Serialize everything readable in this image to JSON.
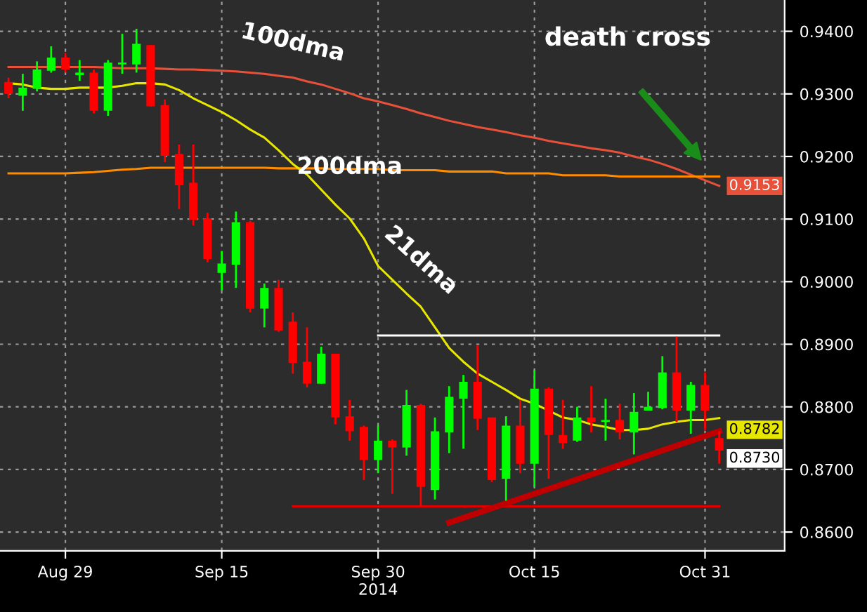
{
  "chart_data": {
    "type": "candlestick",
    "categories": [
      null,
      null,
      null,
      null,
      "Aug 29",
      null,
      null,
      null,
      null,
      null,
      null,
      null,
      null,
      null,
      null,
      "Sep 15",
      null,
      null,
      null,
      null,
      null,
      null,
      null,
      null,
      null,
      null,
      "Sep 30\n2014",
      null,
      null,
      null,
      null,
      null,
      null,
      null,
      null,
      null,
      null,
      "Oct 15",
      null,
      null,
      null,
      null,
      null,
      null,
      null,
      null,
      null,
      null,
      null,
      "Oct 31",
      null
    ],
    "ohlc": [
      [
        0.9319,
        0.9326,
        0.9293,
        0.93
      ],
      [
        0.9297,
        0.9332,
        0.9273,
        0.931
      ],
      [
        0.9308,
        0.9352,
        0.9304,
        0.9339
      ],
      [
        0.9337,
        0.9376,
        0.9334,
        0.9358
      ],
      [
        0.9358,
        0.9365,
        0.9334,
        0.9339
      ],
      [
        0.933,
        0.9354,
        0.9321,
        0.9334
      ],
      [
        0.9334,
        0.9339,
        0.9269,
        0.9273
      ],
      [
        0.9273,
        0.9354,
        0.9265,
        0.935
      ],
      [
        0.9347,
        0.9396,
        0.9332,
        0.935
      ],
      [
        0.9347,
        0.9404,
        0.9334,
        0.938
      ],
      [
        0.9378,
        0.9378,
        0.928,
        0.928
      ],
      [
        0.9282,
        0.9291,
        0.9191,
        0.9201
      ],
      [
        0.9204,
        0.9219,
        0.9116,
        0.9154
      ],
      [
        0.9158,
        0.9219,
        0.909,
        0.9099
      ],
      [
        0.9101,
        0.911,
        0.9031,
        0.9036
      ],
      [
        0.9014,
        0.9049,
        0.8986,
        0.9029
      ],
      [
        0.9027,
        0.9112,
        0.899,
        0.9095
      ],
      [
        0.9095,
        0.9097,
        0.8951,
        0.8957
      ],
      [
        0.8957,
        0.8997,
        0.8927,
        0.899
      ],
      [
        0.899,
        0.9003,
        0.892,
        0.8922
      ],
      [
        0.8936,
        0.8951,
        0.8853,
        0.887
      ],
      [
        0.8872,
        0.8927,
        0.8831,
        0.8837
      ],
      [
        0.8837,
        0.8896,
        0.8837,
        0.8885
      ],
      [
        0.8885,
        0.8885,
        0.8772,
        0.8783
      ],
      [
        0.8785,
        0.8811,
        0.8746,
        0.8761
      ],
      [
        0.8768,
        0.877,
        0.8683,
        0.8715
      ],
      [
        0.8715,
        0.877,
        0.8694,
        0.8746
      ],
      [
        0.8746,
        0.8748,
        0.8661,
        0.8735
      ],
      [
        0.8735,
        0.8827,
        0.8722,
        0.8803
      ],
      [
        0.8803,
        0.8805,
        0.8641,
        0.8672
      ],
      [
        0.8667,
        0.8783,
        0.8652,
        0.8761
      ],
      [
        0.8759,
        0.8833,
        0.8726,
        0.8816
      ],
      [
        0.8813,
        0.8851,
        0.8733,
        0.884
      ],
      [
        0.884,
        0.8898,
        0.8763,
        0.8781
      ],
      [
        0.8783,
        0.8783,
        0.868,
        0.8683
      ],
      [
        0.8685,
        0.8785,
        0.865,
        0.877
      ],
      [
        0.877,
        0.8811,
        0.8694,
        0.8709
      ],
      [
        0.8709,
        0.8859,
        0.8672,
        0.8829
      ],
      [
        0.8829,
        0.8831,
        0.8685,
        0.8755
      ],
      [
        0.8755,
        0.8811,
        0.8733,
        0.8742
      ],
      [
        0.8746,
        0.88,
        0.8744,
        0.8783
      ],
      [
        0.8783,
        0.8833,
        0.8759,
        0.8776
      ],
      [
        0.8776,
        0.8813,
        0.8746,
        0.8779
      ],
      [
        0.8779,
        0.8805,
        0.8748,
        0.8759
      ],
      [
        0.8759,
        0.8822,
        0.8724,
        0.8792
      ],
      [
        0.8794,
        0.8824,
        0.8794,
        0.88
      ],
      [
        0.8798,
        0.8881,
        0.8796,
        0.8855
      ],
      [
        0.8855,
        0.8912,
        0.8776,
        0.8794
      ],
      [
        0.8794,
        0.884,
        0.8757,
        0.8835
      ],
      [
        0.8835,
        0.8855,
        0.8763,
        0.8794
      ],
      [
        0.875,
        0.8761,
        0.8709,
        0.873
      ]
    ],
    "colors": [
      "#ff0000",
      "#00ff00",
      "#00ff00",
      "#00ff00",
      "#ff0000",
      "#00ff00",
      "#ff0000",
      "#00ff00",
      "#00ff00",
      "#00ff00",
      "#ff0000",
      "#ff0000",
      "#ff0000",
      "#ff0000",
      "#ff0000",
      "#00ff00",
      "#00ff00",
      "#ff0000",
      "#00ff00",
      "#ff0000",
      "#ff0000",
      "#ff0000",
      "#00ff00",
      "#ff0000",
      "#ff0000",
      "#ff0000",
      "#00ff00",
      "#ff0000",
      "#00ff00",
      "#ff0000",
      "#00ff00",
      "#00ff00",
      "#00ff00",
      "#ff0000",
      "#ff0000",
      "#00ff00",
      "#ff0000",
      "#00ff00",
      "#ff0000",
      "#ff0000",
      "#00ff00",
      "#ff0000",
      "#00ff00",
      "#ff0000",
      "#00ff00",
      "#00ff00",
      "#00ff00",
      "#ff0000",
      "#00ff00",
      "#ff0000",
      "#ff0000"
    ],
    "series": [
      {
        "type": "line",
        "name": "100dma",
        "color": "#e8503a",
        "values": [
          0.9343,
          0.9343,
          0.9343,
          0.9343,
          0.9343,
          0.9343,
          0.9343,
          0.9342,
          0.9341,
          0.9341,
          0.9341,
          0.934,
          0.9339,
          0.9339,
          0.9338,
          0.9337,
          0.9336,
          0.9334,
          0.9332,
          0.9329,
          0.9326,
          0.932,
          0.9315,
          0.9308,
          0.9301,
          0.9293,
          0.9288,
          0.9282,
          0.9276,
          0.9269,
          0.9263,
          0.9257,
          0.9252,
          0.9247,
          0.9243,
          0.9239,
          0.9234,
          0.923,
          0.9225,
          0.9221,
          0.9217,
          0.9213,
          0.921,
          0.9206,
          0.92,
          0.9195,
          0.9188,
          0.918,
          0.9171,
          0.9162,
          0.9153
        ],
        "value_labels": [
          null,
          null,
          null,
          null,
          null,
          null,
          null,
          null,
          null,
          null,
          null,
          null,
          null,
          null,
          null,
          null,
          null,
          null,
          null,
          null,
          null,
          null,
          null,
          null,
          null,
          null,
          null,
          null,
          null,
          null,
          null,
          null,
          null,
          null,
          null,
          null,
          null,
          null,
          null,
          null,
          null,
          null,
          null,
          null,
          null,
          null,
          null,
          null,
          null,
          null,
          "0.9153"
        ]
      },
      {
        "type": "line",
        "name": "200dma",
        "color": "#ff8c00",
        "values": [
          0.9173,
          0.9173,
          0.9173,
          0.9173,
          0.9173,
          0.9174,
          0.9175,
          0.9177,
          0.9179,
          0.918,
          0.9182,
          0.9182,
          0.9182,
          0.9182,
          0.9182,
          0.9182,
          0.9182,
          0.9182,
          0.9182,
          0.9181,
          0.9181,
          0.9181,
          0.9181,
          0.918,
          0.918,
          0.918,
          0.918,
          0.9178,
          0.9178,
          0.9178,
          0.9178,
          0.9176,
          0.9176,
          0.9176,
          0.9176,
          0.9173,
          0.9173,
          0.9173,
          0.9173,
          0.917,
          0.917,
          0.917,
          0.917,
          0.9168,
          0.9168,
          0.9168,
          0.9168,
          0.9168,
          0.9168,
          0.9168,
          0.9168
        ]
      },
      {
        "type": "line",
        "name": "21dma",
        "color": "#e6e600",
        "values": [
          0.9317,
          0.9315,
          0.931,
          0.9308,
          0.9308,
          0.931,
          0.931,
          0.931,
          0.9313,
          0.9317,
          0.9317,
          0.9315,
          0.9306,
          0.9293,
          0.9282,
          0.9271,
          0.9258,
          0.9243,
          0.923,
          0.921,
          0.9188,
          0.9171,
          0.9147,
          0.9123,
          0.9101,
          0.9069,
          0.9025,
          0.9003,
          0.8981,
          0.896,
          0.8927,
          0.8894,
          0.8872,
          0.8853,
          0.884,
          0.8827,
          0.8813,
          0.8805,
          0.8794,
          0.8783,
          0.8779,
          0.8772,
          0.8768,
          0.8763,
          0.8763,
          0.8765,
          0.8772,
          0.8776,
          0.8779,
          0.8779,
          0.8782
        ],
        "value_labels": [
          null,
          null,
          null,
          null,
          null,
          null,
          null,
          null,
          null,
          null,
          null,
          null,
          null,
          null,
          null,
          null,
          null,
          null,
          null,
          null,
          null,
          null,
          null,
          null,
          null,
          null,
          null,
          null,
          null,
          null,
          null,
          null,
          null,
          null,
          null,
          null,
          null,
          null,
          null,
          null,
          null,
          null,
          null,
          null,
          null,
          null,
          null,
          null,
          null,
          null,
          "0.8782"
        ]
      },
      {
        "type": "line",
        "color": "#ffffff",
        "values": [
          null,
          null,
          null,
          null,
          null,
          null,
          null,
          null,
          null,
          null,
          null,
          null,
          null,
          null,
          null,
          null,
          null,
          null,
          null,
          null,
          null,
          null,
          null,
          null,
          null,
          null,
          0.8914,
          0.8914,
          0.8914,
          0.8914,
          0.8914,
          0.8914,
          0.8914,
          0.8914,
          0.8914,
          0.8914,
          0.8914,
          0.8914,
          0.8914,
          0.8914,
          0.8914,
          0.8914,
          0.8914,
          0.8914,
          0.8914,
          0.8914,
          0.8914,
          0.8914,
          0.8914,
          0.8914,
          0.8914
        ]
      },
      {
        "type": "line",
        "color": "#e00000",
        "values": [
          null,
          null,
          null,
          null,
          null,
          null,
          null,
          null,
          null,
          null,
          null,
          null,
          null,
          null,
          null,
          null,
          null,
          null,
          null,
          null,
          0.8641,
          0.8641,
          0.8641,
          0.8641,
          0.8641,
          0.8641,
          0.8641,
          0.8641,
          0.8641,
          0.8641,
          0.8641,
          0.8641,
          0.8641,
          0.8641,
          0.8641,
          0.8641,
          0.8641,
          0.8641,
          0.8641,
          0.8641,
          0.8641,
          0.8641,
          0.8641,
          0.8641,
          0.8641,
          0.8641,
          0.8641,
          0.8641,
          0.8641,
          0.8641,
          0.8641
        ]
      },
      {
        "type": "line",
        "color": "#c00000",
        "values": [
          null,
          null,
          null,
          null,
          null,
          null,
          null,
          null,
          null,
          null,
          null,
          null,
          null,
          null,
          null,
          null,
          null,
          null,
          null,
          null,
          null,
          null,
          null,
          null,
          null,
          null,
          null,
          null,
          null,
          null,
          null,
          0.8615,
          null,
          null,
          null,
          null,
          null,
          null,
          null,
          null,
          null,
          null,
          null,
          null,
          null,
          null,
          null,
          null,
          null,
          null,
          0.8761
        ]
      }
    ],
    "ylim": [
      0.857,
      0.945
    ],
    "yticks": [
      {
        "value": 0.86,
        "label": "0.8600"
      },
      {
        "value": 0.87,
        "label": "0.8700"
      },
      {
        "value": 0.88,
        "label": "0.8800"
      },
      {
        "value": 0.89,
        "label": "0.8900"
      },
      {
        "value": 0.9,
        "label": "0.9000"
      },
      {
        "value": 0.91,
        "label": "0.9100"
      },
      {
        "value": 0.92,
        "label": "0.9200"
      },
      {
        "value": 0.93,
        "label": "0.9300"
      },
      {
        "value": 0.94,
        "label": "0.9400"
      }
    ],
    "grid": true,
    "annotations": [
      "death cross",
      "0.8730"
    ]
  }
}
